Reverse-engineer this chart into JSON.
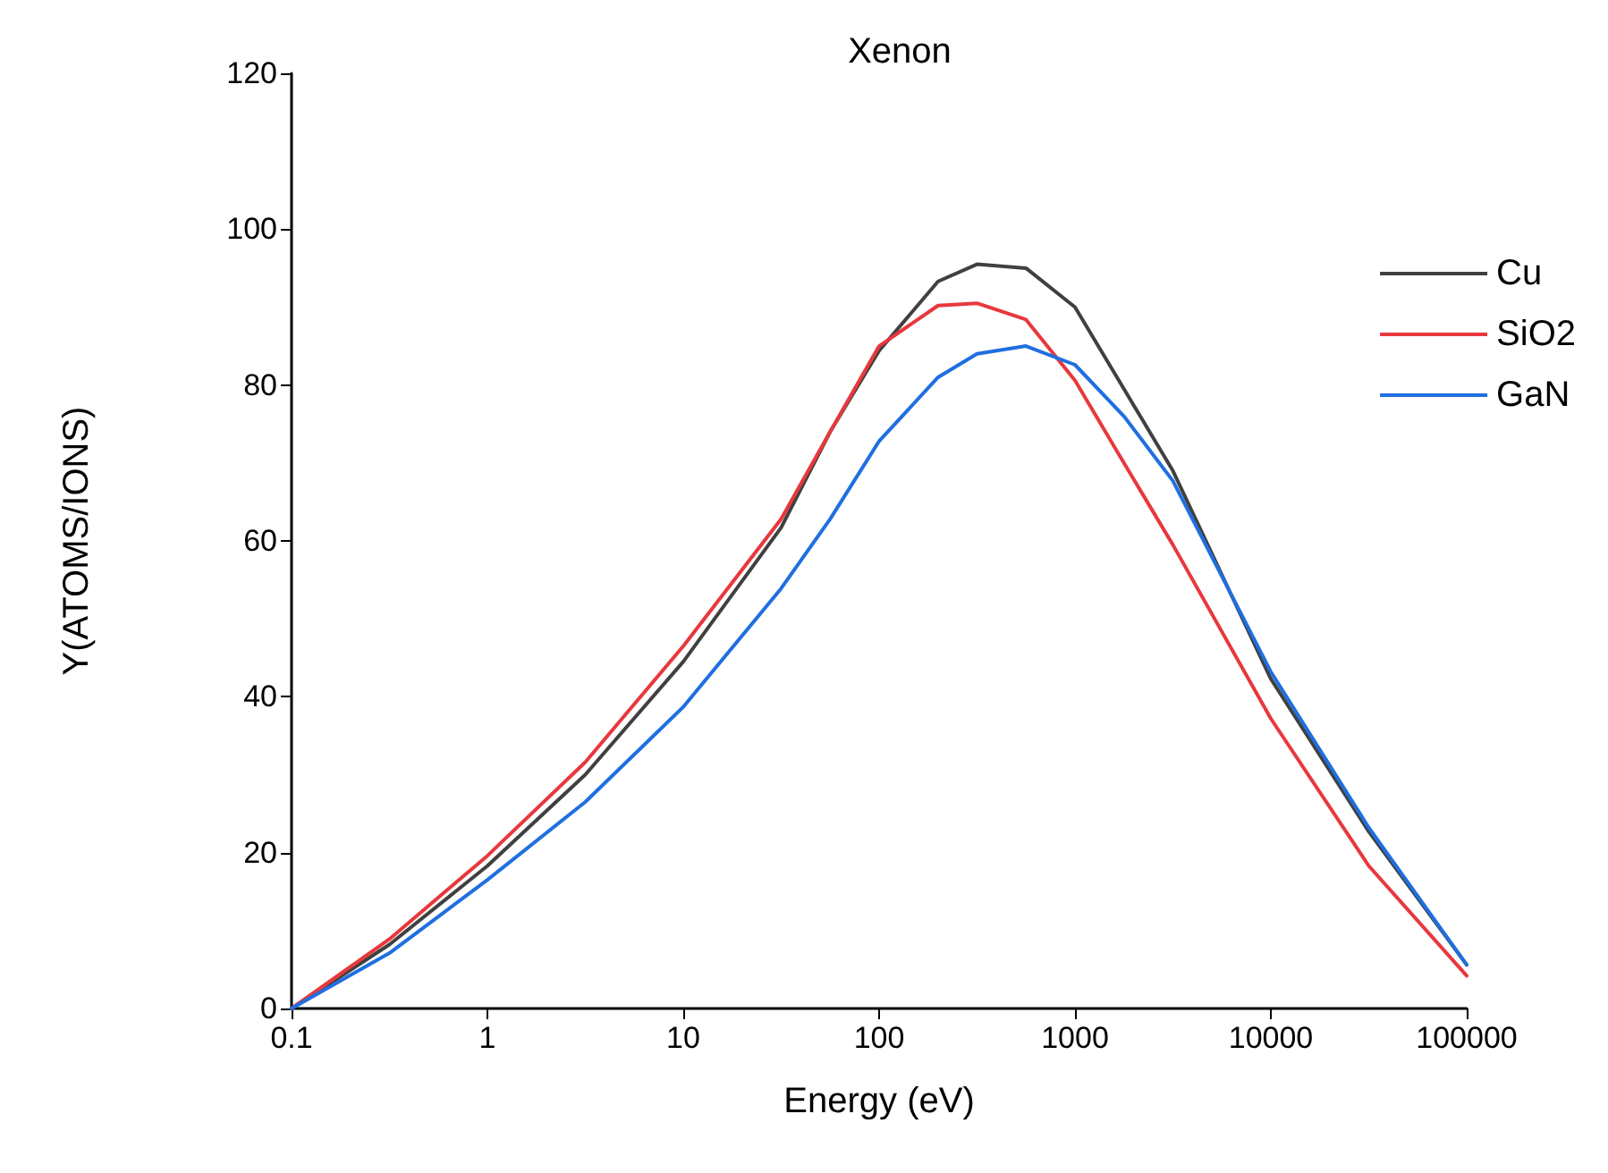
{
  "chart_data": {
    "type": "line",
    "title": "Xenon",
    "xlabel": "Energy (eV)",
    "ylabel": "Y(ATOMS/IONS)",
    "x": [
      0.1,
      0.316,
      1,
      3.16,
      10,
      31.6,
      56.2,
      100,
      200,
      316,
      562,
      1000,
      1778,
      3162,
      10000,
      31623,
      100000
    ],
    "series": [
      {
        "name": "Cu",
        "color": "#404040",
        "values": [
          0,
          8.2,
          18.3,
          30,
          44.5,
          61.7,
          74,
          84.4,
          93.3,
          95.5,
          95,
          90,
          79.5,
          69,
          42.3,
          22.7,
          5.6
        ]
      },
      {
        "name": "SiO2",
        "color": "#e8383d",
        "values": [
          0,
          8.9,
          19.6,
          31.6,
          46.5,
          62.8,
          74,
          85,
          90.2,
          90.5,
          88.4,
          80.6,
          70,
          59.5,
          37.2,
          18.3,
          4.2
        ]
      },
      {
        "name": "GaN",
        "color": "#1f6fe0",
        "values": [
          0,
          7.1,
          16.5,
          26.5,
          38.7,
          53.9,
          62.8,
          72.8,
          81,
          84,
          85,
          82.6,
          76,
          67.7,
          43.2,
          23.2,
          5.6
        ]
      }
    ],
    "log": "x",
    "xlim": [
      0.1,
      100000
    ],
    "xticks": [
      0.1,
      1,
      10,
      100,
      1000,
      10000,
      100000
    ],
    "ylim": [
      0,
      120
    ],
    "yticks": [
      0,
      20,
      40,
      60,
      80,
      100,
      120
    ],
    "legend": "top right",
    "grid": false,
    "marker": "none",
    "line_style": "solid"
  }
}
